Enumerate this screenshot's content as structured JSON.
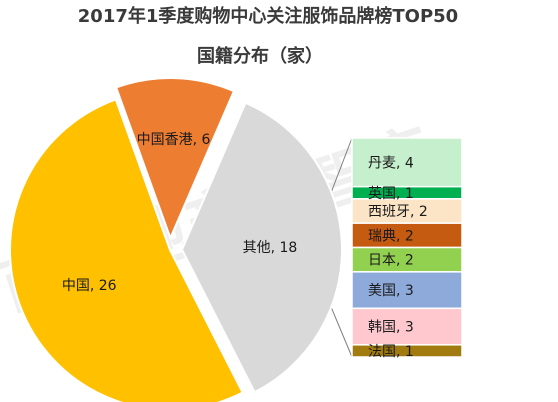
{
  "title_line1": "2017年1季度购物中心关注服饰品牌榜TOP50",
  "title_line2": "国籍分布（家）",
  "watermark": "商业地产云智库",
  "chart_data": [
    {
      "type": "pie",
      "slices": [
        {
          "label": "中国",
          "value": 26,
          "color": "#ffc000"
        },
        {
          "label": "中国香港",
          "value": 6,
          "color": "#ed7d31"
        },
        {
          "label": "其他",
          "value": 18,
          "color": "#d9d9d9"
        }
      ]
    },
    {
      "type": "bar",
      "stacked": true,
      "parent_slice": "其他",
      "segments": [
        {
          "label": "丹麦",
          "value": 4,
          "color": "#c6efce"
        },
        {
          "label": "英国",
          "value": 1,
          "color": "#00b050"
        },
        {
          "label": "西班牙",
          "value": 2,
          "color": "#fce4c6"
        },
        {
          "label": "瑞典",
          "value": 2,
          "color": "#c55a11"
        },
        {
          "label": "日本",
          "value": 2,
          "color": "#92d050"
        },
        {
          "label": "美国",
          "value": 3,
          "color": "#8eaadb"
        },
        {
          "label": "韩国",
          "value": 3,
          "color": "#ffc7ce"
        },
        {
          "label": "法国",
          "value": 1,
          "color": "#a17a10"
        }
      ]
    }
  ]
}
